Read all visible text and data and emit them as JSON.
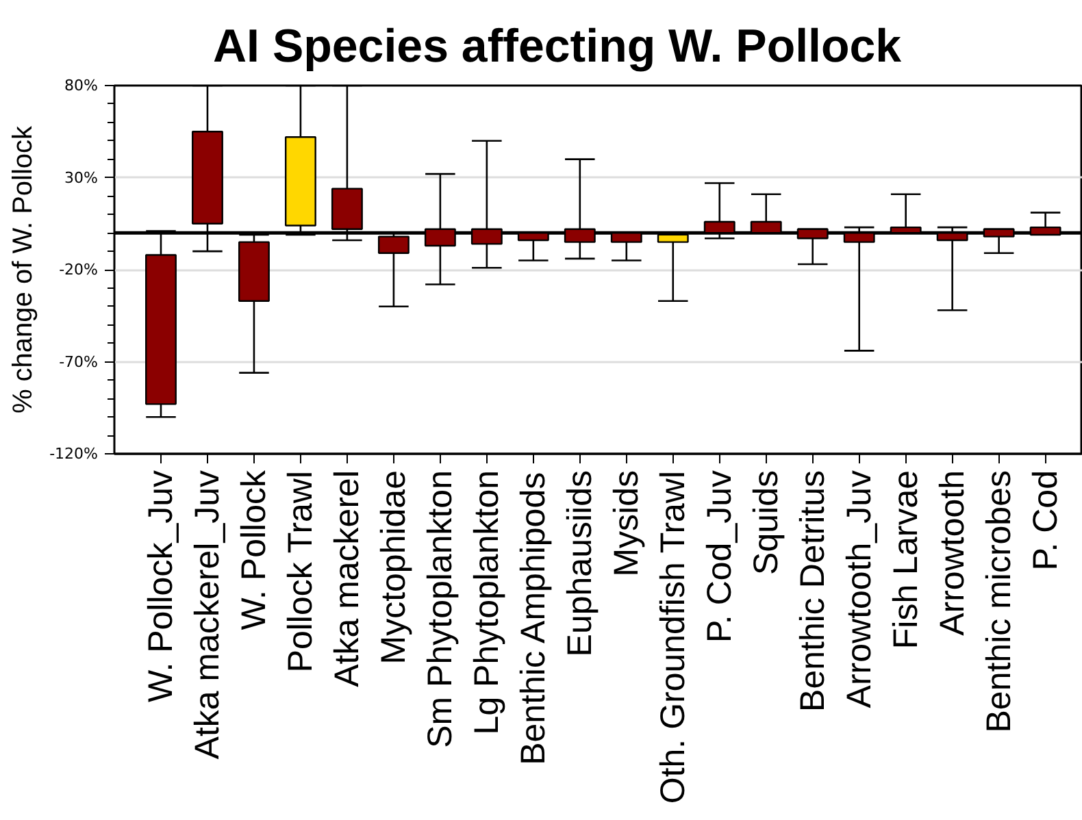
{
  "chart_data": {
    "type": "box",
    "title": "AI Species affecting W. Pollock",
    "ylabel": "% change of W. Pollock",
    "categories": [
      "W. Pollock_Juv",
      "Atka mackerel_Juv",
      "W. Pollock",
      "Pollock Trawl",
      "Atka mackerel",
      "Myctophidae",
      "Sm Phytoplankton",
      "Lg Phytoplankton",
      "Benthic Amphipods",
      "Euphausiids",
      "Mysids",
      "Oth. Groundfish Trawl",
      "P. Cod_Juv",
      "Squids",
      "Benthic Detritus",
      "Arrowtooth_Juv",
      "Fish Larvae",
      "Arrowtooth",
      "Benthic microbes",
      "P. Cod"
    ],
    "boxes": [
      {
        "low": -100,
        "q1": -93,
        "q3": -12,
        "high": 1
      },
      {
        "low": -10,
        "q1": 5,
        "q3": 55,
        "high": 80
      },
      {
        "low": -76,
        "q1": -37,
        "q3": -5,
        "high": -1
      },
      {
        "low": -1,
        "q1": 4,
        "q3": 52,
        "high": 80
      },
      {
        "low": -4,
        "q1": 2,
        "q3": 24,
        "high": 80
      },
      {
        "low": -40,
        "q1": -11,
        "q3": -2,
        "high": 0
      },
      {
        "low": -28,
        "q1": -7,
        "q3": 2,
        "high": 32
      },
      {
        "low": -19,
        "q1": -6,
        "q3": 2,
        "high": 50
      },
      {
        "low": -15,
        "q1": -4,
        "q3": 0,
        "high": 0
      },
      {
        "low": -14,
        "q1": -5,
        "q3": 2,
        "high": 40
      },
      {
        "low": -15,
        "q1": -5,
        "q3": 0,
        "high": 0
      },
      {
        "low": -37,
        "q1": -5,
        "q3": -1,
        "high": -1
      },
      {
        "low": -3,
        "q1": 0,
        "q3": 6,
        "high": 27
      },
      {
        "low": 0,
        "q1": 0,
        "q3": 6,
        "high": 21
      },
      {
        "low": -17,
        "q1": -3,
        "q3": 2,
        "high": 2
      },
      {
        "low": -64,
        "q1": -5,
        "q3": 0,
        "high": 3
      },
      {
        "low": 0,
        "q1": 0,
        "q3": 3,
        "high": 21
      },
      {
        "low": -42,
        "q1": -4,
        "q3": 0,
        "high": 3
      },
      {
        "low": -11,
        "q1": -2,
        "q3": 2,
        "high": 2
      },
      {
        "low": -1,
        "q1": -1,
        "q3": 3,
        "high": 11
      }
    ],
    "colors": [
      "#8b0000",
      "#8b0000",
      "#8b0000",
      "#ffd700",
      "#8b0000",
      "#8b0000",
      "#8b0000",
      "#8b0000",
      "#8b0000",
      "#8b0000",
      "#8b0000",
      "#ffd700",
      "#8b0000",
      "#8b0000",
      "#8b0000",
      "#8b0000",
      "#8b0000",
      "#8b0000",
      "#8b0000",
      "#8b0000"
    ],
    "ylim": [
      -120,
      80
    ],
    "yticks": [
      {
        "value": 80,
        "label": "80%"
      },
      {
        "value": 70,
        "label": null
      },
      {
        "value": 60,
        "label": null
      },
      {
        "value": 50,
        "label": null
      },
      {
        "value": 40,
        "label": null
      },
      {
        "value": 30,
        "label": "30%"
      },
      {
        "value": 20,
        "label": null
      },
      {
        "value": 10,
        "label": null
      },
      {
        "value": 0,
        "label": null
      },
      {
        "value": -10,
        "label": null
      },
      {
        "value": -20,
        "label": "-20%"
      },
      {
        "value": -30,
        "label": null
      },
      {
        "value": -40,
        "label": null
      },
      {
        "value": -50,
        "label": null
      },
      {
        "value": -60,
        "label": null
      },
      {
        "value": -70,
        "label": "-70%"
      },
      {
        "value": -80,
        "label": null
      },
      {
        "value": -90,
        "label": null
      },
      {
        "value": -100,
        "label": null
      },
      {
        "value": -110,
        "label": null
      },
      {
        "value": -120,
        "label": "-120%"
      }
    ],
    "ref_lines": [
      {
        "axis": "y",
        "value": 0,
        "color": "#000000"
      }
    ],
    "grid": "y"
  }
}
